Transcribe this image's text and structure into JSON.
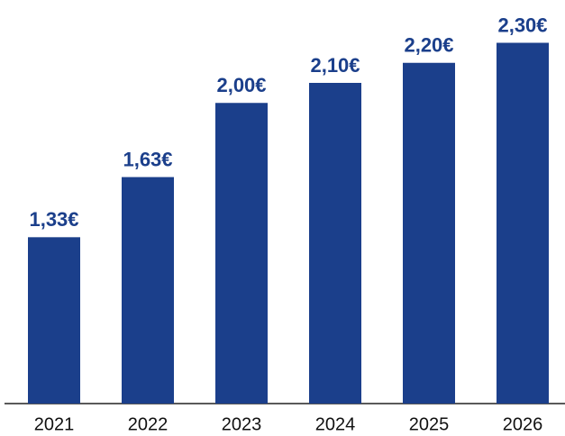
{
  "chart_data": {
    "type": "bar",
    "categories": [
      "2021",
      "2022",
      "2023",
      "2024",
      "2025",
      "2026"
    ],
    "values": [
      1.33,
      1.63,
      2.0,
      2.1,
      2.2,
      2.3
    ],
    "value_labels": [
      "1,33€",
      "1,63€",
      "2,00€",
      "2,10€",
      "2,20€",
      "2,30€"
    ],
    "color": "#1b3f8b",
    "ylim": [
      0.5,
      2.5
    ]
  }
}
